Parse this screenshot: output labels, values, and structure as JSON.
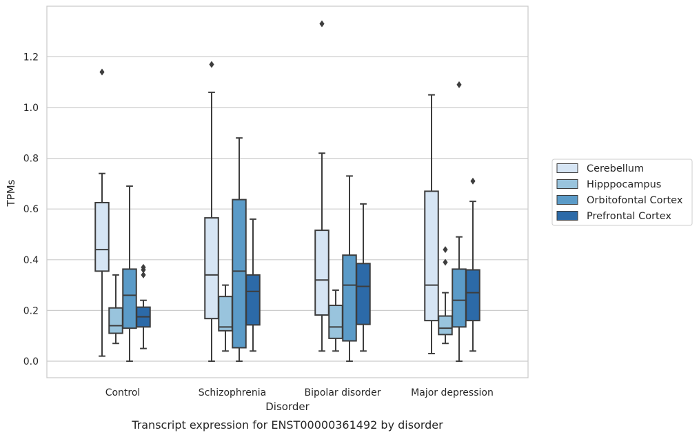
{
  "caption": "Transcript expression for ENST00000361492 by disorder",
  "chart_data": {
    "type": "box",
    "title": "",
    "xlabel": "Disorder",
    "ylabel": "TPMs",
    "ylim": [
      -0.065,
      1.395
    ],
    "yticks": [
      0.0,
      0.2,
      0.4,
      0.6,
      0.8,
      1.0,
      1.2
    ],
    "ytick_labels": [
      "0.0",
      "0.2",
      "0.4",
      "0.6",
      "0.8",
      "1.0",
      "1.2"
    ],
    "grid": "horizontal",
    "legend_position": "right",
    "categories": [
      "Control",
      "Schizophrenia",
      "Bipolar disorder",
      "Major depression"
    ],
    "series": [
      {
        "name": "Cerebellum",
        "color": "#d6e5f4",
        "boxes": [
          {
            "whislo": 0.02,
            "q1": 0.355,
            "med": 0.44,
            "q3": 0.625,
            "whishi": 0.74,
            "fliers": [
              1.14
            ]
          },
          {
            "whislo": 0.0,
            "q1": 0.168,
            "med": 0.34,
            "q3": 0.565,
            "whishi": 1.06,
            "fliers": [
              1.17
            ]
          },
          {
            "whislo": 0.04,
            "q1": 0.182,
            "med": 0.32,
            "q3": 0.516,
            "whishi": 0.82,
            "fliers": [
              1.33
            ]
          },
          {
            "whislo": 0.03,
            "q1": 0.16,
            "med": 0.3,
            "q3": 0.67,
            "whishi": 1.05,
            "fliers": []
          }
        ]
      },
      {
        "name": "Hipppocampus",
        "color": "#99c4dd",
        "boxes": [
          {
            "whislo": 0.07,
            "q1": 0.11,
            "med": 0.14,
            "q3": 0.21,
            "whishi": 0.34,
            "fliers": []
          },
          {
            "whislo": 0.04,
            "q1": 0.12,
            "med": 0.135,
            "q3": 0.255,
            "whishi": 0.3,
            "fliers": []
          },
          {
            "whislo": 0.04,
            "q1": 0.09,
            "med": 0.135,
            "q3": 0.22,
            "whishi": 0.28,
            "fliers": []
          },
          {
            "whislo": 0.07,
            "q1": 0.105,
            "med": 0.13,
            "q3": 0.178,
            "whishi": 0.27,
            "fliers": [
              0.39,
              0.44
            ]
          }
        ]
      },
      {
        "name": "Orbitofontal Cortex",
        "color": "#5b9bc8",
        "boxes": [
          {
            "whislo": 0.0,
            "q1": 0.13,
            "med": 0.26,
            "q3": 0.363,
            "whishi": 0.69,
            "fliers": []
          },
          {
            "whislo": 0.0,
            "q1": 0.053,
            "med": 0.355,
            "q3": 0.637,
            "whishi": 0.88,
            "fliers": []
          },
          {
            "whislo": 0.0,
            "q1": 0.08,
            "med": 0.3,
            "q3": 0.418,
            "whishi": 0.73,
            "fliers": []
          },
          {
            "whislo": 0.0,
            "q1": 0.135,
            "med": 0.24,
            "q3": 0.363,
            "whishi": 0.49,
            "fliers": [
              1.09
            ]
          }
        ]
      },
      {
        "name": "Prefrontal Cortex",
        "color": "#2c6aa8",
        "boxes": [
          {
            "whislo": 0.05,
            "q1": 0.135,
            "med": 0.175,
            "q3": 0.213,
            "whishi": 0.24,
            "fliers": [
              0.34,
              0.36,
              0.37
            ]
          },
          {
            "whislo": 0.04,
            "q1": 0.143,
            "med": 0.275,
            "q3": 0.34,
            "whishi": 0.56,
            "fliers": []
          },
          {
            "whislo": 0.04,
            "q1": 0.145,
            "med": 0.295,
            "q3": 0.385,
            "whishi": 0.62,
            "fliers": []
          },
          {
            "whislo": 0.04,
            "q1": 0.16,
            "med": 0.27,
            "q3": 0.36,
            "whishi": 0.63,
            "fliers": [
              0.71
            ]
          }
        ]
      }
    ]
  }
}
